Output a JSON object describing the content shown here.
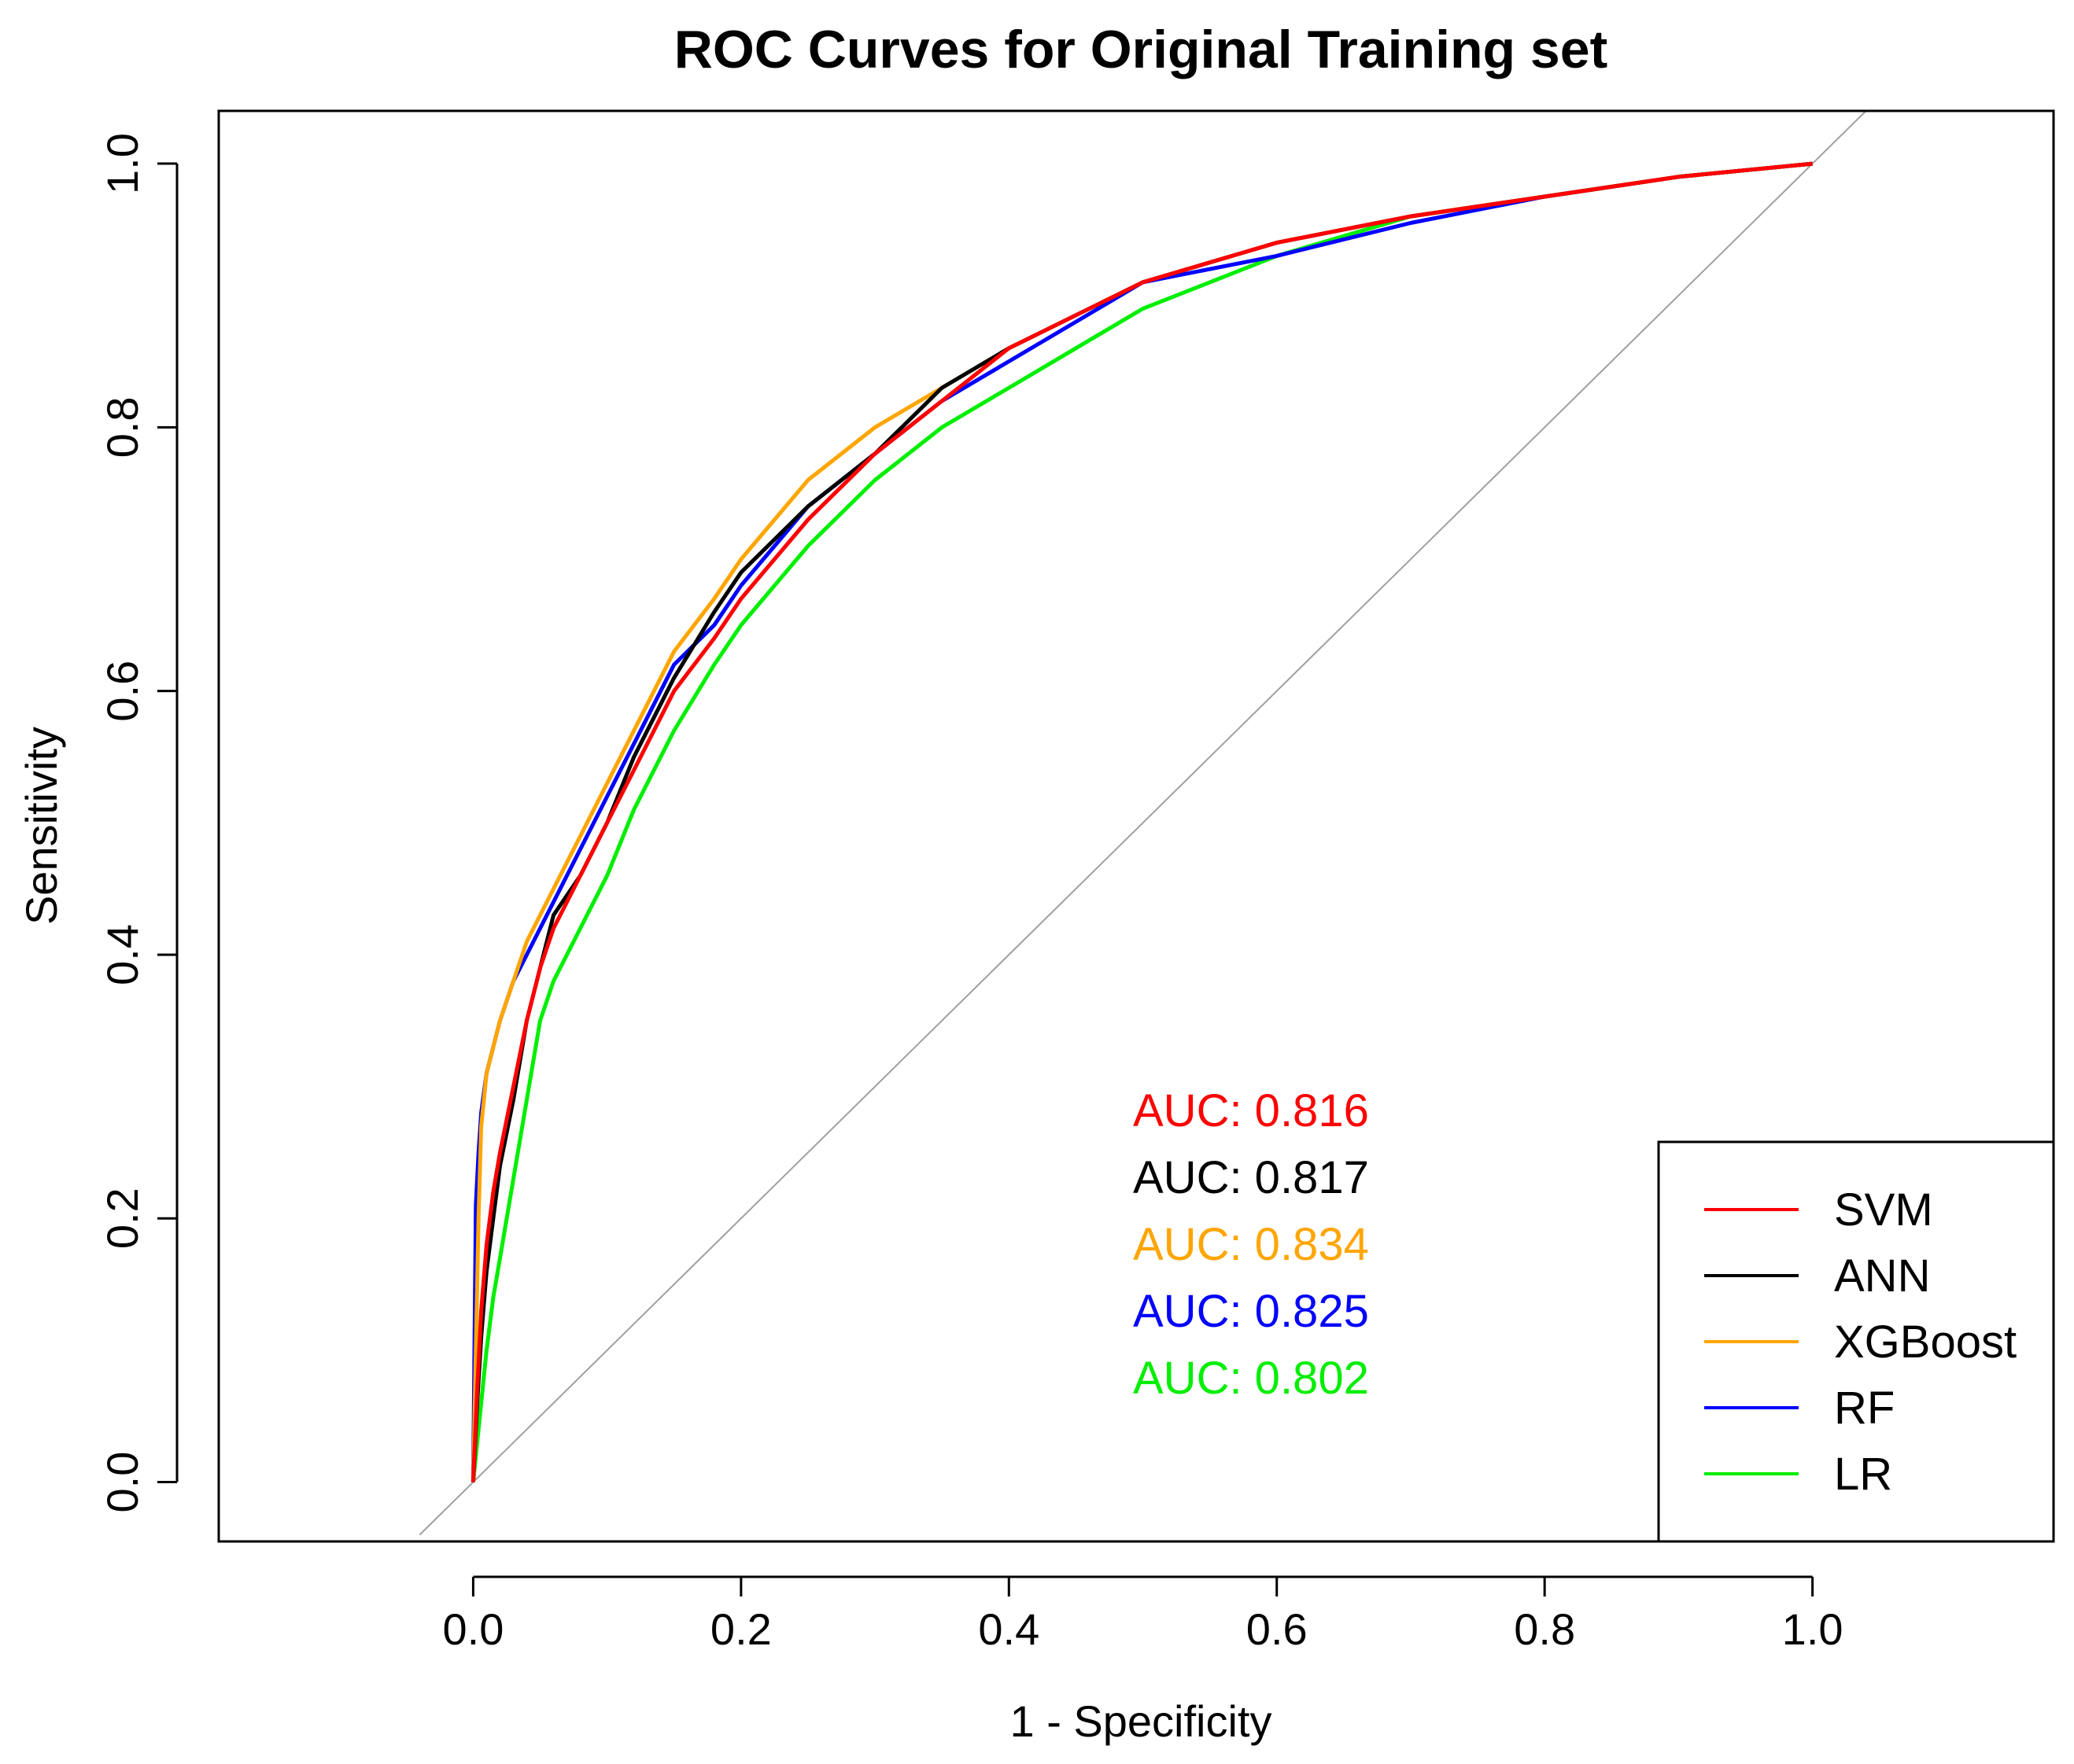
{
  "chart_data": {
    "type": "line",
    "title": "ROC Curves for Original Training set",
    "xlabel": "1 - Specificity",
    "ylabel": "Sensitivity",
    "xlim": [
      -0.19,
      1.18
    ],
    "ylim": [
      -0.045,
      1.04
    ],
    "xticks": [
      0.0,
      0.2,
      0.4,
      0.6,
      0.8,
      1.0
    ],
    "xtick_labels": [
      "0.0",
      "0.2",
      "0.4",
      "0.6",
      "0.8",
      "1.0"
    ],
    "yticks": [
      0.0,
      0.2,
      0.4,
      0.6,
      0.8,
      1.0
    ],
    "ytick_labels": [
      "0.0",
      "0.2",
      "0.4",
      "0.6",
      "0.8",
      "1.0"
    ],
    "grid": false,
    "reference_line": {
      "from": [
        -0.04,
        -0.04
      ],
      "to": [
        1.18,
        1.18
      ],
      "color": "#a0a0a0"
    },
    "legend_position": "bottom-right",
    "series": [
      {
        "name": "SVM",
        "color": "#ff0000",
        "auc_label": "AUC: 0.816",
        "x": [
          0.0,
          0.003,
          0.006,
          0.01,
          0.015,
          0.02,
          0.03,
          0.04,
          0.05,
          0.06,
          0.08,
          0.1,
          0.12,
          0.15,
          0.18,
          0.2,
          0.25,
          0.3,
          0.35,
          0.4,
          0.5,
          0.6,
          0.7,
          0.8,
          0.9,
          1.0
        ],
        "y": [
          0.0,
          0.07,
          0.13,
          0.18,
          0.22,
          0.25,
          0.3,
          0.35,
          0.39,
          0.42,
          0.46,
          0.5,
          0.54,
          0.6,
          0.64,
          0.67,
          0.73,
          0.78,
          0.82,
          0.86,
          0.91,
          0.94,
          0.96,
          0.975,
          0.99,
          1.0
        ]
      },
      {
        "name": "ANN",
        "color": "#000000",
        "auc_label": "AUC: 0.817",
        "x": [
          0.0,
          0.003,
          0.006,
          0.01,
          0.015,
          0.02,
          0.03,
          0.04,
          0.05,
          0.06,
          0.08,
          0.1,
          0.12,
          0.15,
          0.18,
          0.2,
          0.25,
          0.3,
          0.35,
          0.4,
          0.5,
          0.6,
          0.7,
          0.8,
          0.9,
          1.0
        ],
        "y": [
          0.0,
          0.06,
          0.11,
          0.16,
          0.2,
          0.24,
          0.29,
          0.35,
          0.39,
          0.43,
          0.46,
          0.5,
          0.55,
          0.61,
          0.66,
          0.69,
          0.74,
          0.78,
          0.83,
          0.86,
          0.91,
          0.94,
          0.96,
          0.975,
          0.99,
          1.0
        ]
      },
      {
        "name": "XGBoost",
        "color": "#ffa500",
        "auc_label": "AUC: 0.834",
        "x": [
          0.0,
          0.002,
          0.004,
          0.006,
          0.01,
          0.015,
          0.02,
          0.03,
          0.04,
          0.06,
          0.08,
          0.1,
          0.12,
          0.15,
          0.18,
          0.2,
          0.25,
          0.3,
          0.35,
          0.4,
          0.5,
          0.6,
          0.7,
          0.8,
          0.9,
          1.0
        ],
        "y": [
          0.0,
          0.1,
          0.2,
          0.27,
          0.31,
          0.33,
          0.35,
          0.38,
          0.41,
          0.45,
          0.49,
          0.53,
          0.57,
          0.63,
          0.67,
          0.7,
          0.76,
          0.8,
          0.83,
          0.86,
          0.91,
          0.94,
          0.96,
          0.975,
          0.99,
          1.0
        ]
      },
      {
        "name": "RF",
        "color": "#0000ff",
        "auc_label": "AUC: 0.825",
        "x": [
          0.0,
          0.002,
          0.004,
          0.006,
          0.01,
          0.015,
          0.02,
          0.03,
          0.04,
          0.06,
          0.08,
          0.1,
          0.12,
          0.15,
          0.18,
          0.2,
          0.25,
          0.3,
          0.35,
          0.4,
          0.5,
          0.6,
          0.7,
          0.8,
          0.9,
          1.0
        ],
        "y": [
          0.0,
          0.21,
          0.25,
          0.28,
          0.31,
          0.33,
          0.35,
          0.38,
          0.4,
          0.44,
          0.48,
          0.52,
          0.56,
          0.62,
          0.65,
          0.68,
          0.74,
          0.78,
          0.82,
          0.85,
          0.91,
          0.93,
          0.955,
          0.975,
          0.99,
          1.0
        ]
      },
      {
        "name": "LR",
        "color": "#00ee00",
        "auc_label": "AUC: 0.802",
        "x": [
          0.0,
          0.005,
          0.01,
          0.015,
          0.02,
          0.03,
          0.04,
          0.05,
          0.06,
          0.08,
          0.1,
          0.12,
          0.15,
          0.18,
          0.2,
          0.25,
          0.3,
          0.35,
          0.4,
          0.45,
          0.5,
          0.6,
          0.7,
          0.8,
          0.9,
          1.0
        ],
        "y": [
          0.0,
          0.05,
          0.1,
          0.14,
          0.17,
          0.23,
          0.29,
          0.35,
          0.38,
          0.42,
          0.46,
          0.51,
          0.57,
          0.62,
          0.65,
          0.71,
          0.76,
          0.8,
          0.83,
          0.86,
          0.89,
          0.93,
          0.96,
          0.975,
          0.99,
          1.0
        ]
      }
    ]
  }
}
